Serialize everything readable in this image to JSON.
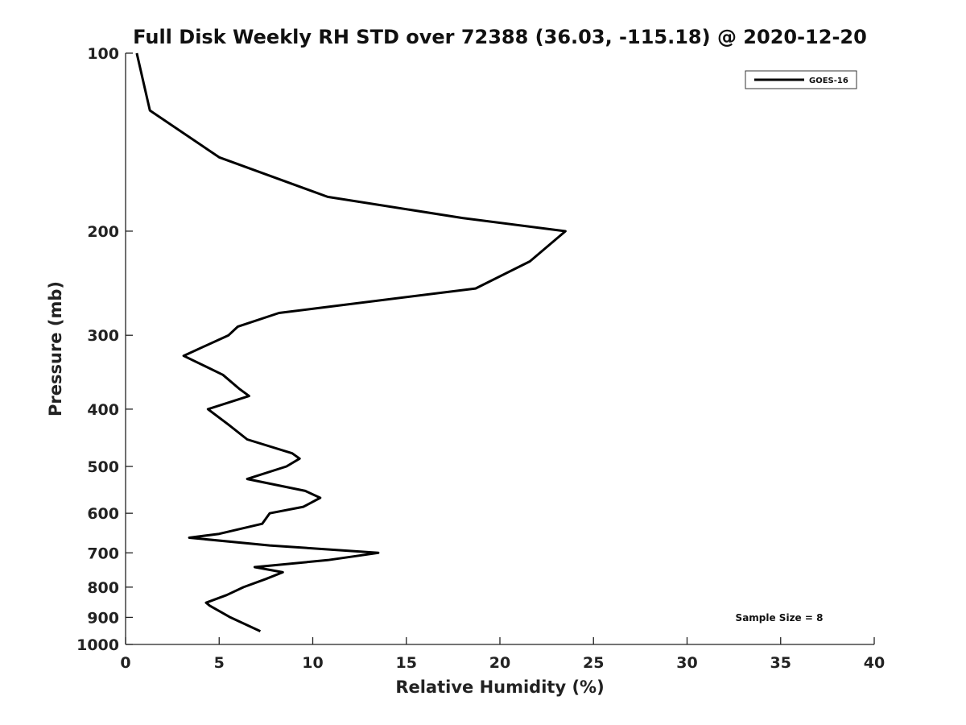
{
  "chart_data": {
    "type": "line",
    "title": "Full Disk Weekly RH STD over 72388 (36.03, -115.18) @ 2020-12-20",
    "xlabel": "Relative Humidity (%)",
    "ylabel": "Pressure (mb)",
    "xlim": [
      0,
      40
    ],
    "ylim": [
      100,
      1000
    ],
    "y_scale": "log",
    "y_reversed": true,
    "x_ticks": [
      "0",
      "5",
      "10",
      "15",
      "20",
      "25",
      "30",
      "35",
      "40"
    ],
    "y_ticks": [
      "100",
      "200",
      "300",
      "400",
      "500",
      "600",
      "700",
      "800",
      "900",
      "1000"
    ],
    "grid": false,
    "legend_position": "top-right",
    "series": [
      {
        "name": "GOES-16",
        "color": "#000000",
        "points": [
          [
            0.6,
            100
          ],
          [
            1.3,
            125
          ],
          [
            5.0,
            150
          ],
          [
            10.8,
            175
          ],
          [
            18.0,
            190
          ],
          [
            23.5,
            200
          ],
          [
            21.6,
            225
          ],
          [
            18.7,
            250
          ],
          [
            8.2,
            275
          ],
          [
            6.0,
            290
          ],
          [
            5.5,
            300
          ],
          [
            3.1,
            325
          ],
          [
            5.2,
            350
          ],
          [
            6.1,
            370
          ],
          [
            6.6,
            380
          ],
          [
            4.4,
            400
          ],
          [
            5.5,
            425
          ],
          [
            6.5,
            450
          ],
          [
            8.9,
            475
          ],
          [
            9.3,
            485
          ],
          [
            8.6,
            500
          ],
          [
            6.5,
            525
          ],
          [
            9.6,
            550
          ],
          [
            10.4,
            565
          ],
          [
            9.5,
            585
          ],
          [
            7.7,
            600
          ],
          [
            7.3,
            625
          ],
          [
            5.0,
            650
          ],
          [
            3.4,
            660
          ],
          [
            7.7,
            680
          ],
          [
            13.5,
            700
          ],
          [
            10.8,
            720
          ],
          [
            6.9,
            740
          ],
          [
            8.4,
            755
          ],
          [
            7.5,
            775
          ],
          [
            6.3,
            800
          ],
          [
            5.4,
            825
          ],
          [
            4.3,
            850
          ],
          [
            4.5,
            860
          ],
          [
            5.6,
            900
          ],
          [
            7.2,
            950
          ]
        ]
      }
    ],
    "annotations": [
      "Sample Size = 8"
    ]
  }
}
